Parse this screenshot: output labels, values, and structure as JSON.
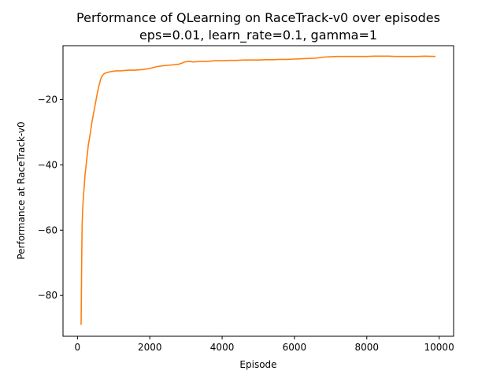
{
  "chart_data": {
    "type": "line",
    "title": "Performance of QLearning on RaceTrack-v0 over episodes",
    "subtitle": "eps=0.01, learn_rate=0.1, gamma=1",
    "xlabel": "Episode",
    "ylabel": "Performance at RaceTrack-v0",
    "xlim": [
      -400,
      10400
    ],
    "ylim": [
      -92.5,
      -3.5
    ],
    "xticks": [
      0,
      2000,
      4000,
      6000,
      8000,
      10000
    ],
    "xtick_labels": [
      "0",
      "2000",
      "4000",
      "6000",
      "8000",
      "10000"
    ],
    "yticks": [
      -20,
      -40,
      -60,
      -80
    ],
    "ytick_labels": [
      "−20",
      "−40",
      "−60",
      "−80"
    ],
    "grid": false,
    "legend": "none",
    "colors": {
      "series": "#ff7f0e"
    },
    "series": [
      {
        "x": [
          100,
          115,
          130,
          150,
          170,
          190,
          210,
          240,
          270,
          300,
          330,
          360,
          400,
          450,
          500,
          550,
          600,
          650,
          700,
          750,
          800,
          900,
          1000,
          1100,
          1200,
          1400,
          1600,
          1800,
          2000,
          2200,
          2400,
          2600,
          2800,
          3000,
          3100,
          3200,
          3400,
          3600,
          3800,
          4000,
          4200,
          4400,
          4600,
          4800,
          5000,
          5200,
          5400,
          5600,
          5800,
          6000,
          6200,
          6400,
          6600,
          6800,
          7000,
          7200,
          7400,
          7600,
          7800,
          8000,
          8200,
          8400,
          8600,
          8800,
          9000,
          9200,
          9400,
          9600,
          9900
        ],
        "y": [
          -89,
          -70,
          -58,
          -52,
          -49,
          -46,
          -43,
          -40,
          -37,
          -34,
          -32,
          -30,
          -27,
          -24,
          -21,
          -18,
          -15.5,
          -13.5,
          -12.5,
          -12,
          -11.8,
          -11.5,
          -11.3,
          -11.2,
          -11.2,
          -11.0,
          -11.0,
          -10.8,
          -10.5,
          -9.9,
          -9.6,
          -9.4,
          -9.2,
          -8.4,
          -8.3,
          -8.5,
          -8.3,
          -8.3,
          -8.1,
          -8.1,
          -8.0,
          -8.0,
          -7.9,
          -7.9,
          -7.9,
          -7.8,
          -7.8,
          -7.7,
          -7.7,
          -7.6,
          -7.5,
          -7.4,
          -7.3,
          -7.0,
          -6.9,
          -6.8,
          -6.8,
          -6.8,
          -6.8,
          -6.8,
          -6.7,
          -6.7,
          -6.7,
          -6.8,
          -6.8,
          -6.8,
          -6.8,
          -6.7,
          -6.8
        ]
      }
    ]
  }
}
